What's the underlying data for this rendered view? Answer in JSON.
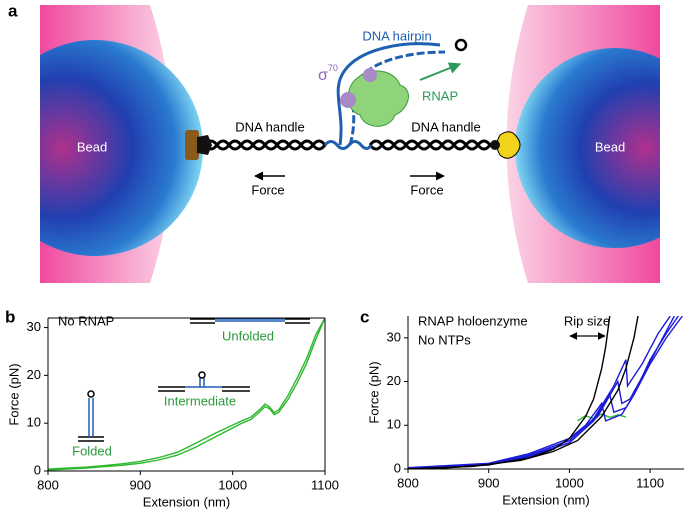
{
  "panel_labels": [
    "a",
    "b",
    "c"
  ],
  "diagram": {
    "hairpin": "DNA hairpin",
    "sigma": {
      "symbol": "σ",
      "superscript": "70"
    },
    "rnap": "RNAP",
    "handle_left": "DNA handle",
    "handle_right": "DNA handle",
    "force_left": "Force",
    "force_right": "Force",
    "bead_left": "Bead",
    "bead_right": "Bead"
  },
  "chart_data": [
    {
      "type": "line",
      "xlabel": "Extension (nm)",
      "ylabel": "Force (pN)",
      "xlim": [
        800,
        1100
      ],
      "xticks": [
        800,
        900,
        1000,
        1100
      ],
      "ylim": [
        0,
        32
      ],
      "yticks": [
        0,
        10,
        20,
        30
      ],
      "annotations": [
        "No RNAP",
        "Unfolded",
        "Intermediate",
        "Folded"
      ],
      "series": [
        {
          "color": "#2db82d",
          "x": [
            800,
            820,
            840,
            860,
            880,
            900,
            920,
            940,
            960,
            980,
            1000,
            1010,
            1020,
            1030,
            1035,
            1040,
            1045,
            1050,
            1060,
            1070,
            1080,
            1090,
            1100
          ],
          "values": [
            0.2,
            0.4,
            0.6,
            0.9,
            1.2,
            1.6,
            2.3,
            3.3,
            5,
            7,
            9,
            10,
            10.8,
            12.5,
            13.5,
            13,
            11.8,
            12.3,
            15,
            18.5,
            22.5,
            27.5,
            32
          ]
        },
        {
          "color": "#2db82d",
          "x": [
            800,
            820,
            840,
            860,
            880,
            900,
            920,
            940,
            960,
            980,
            1000,
            1010,
            1020,
            1030,
            1035,
            1040,
            1045,
            1050,
            1060,
            1070,
            1080,
            1090,
            1100
          ],
          "values": [
            0.4,
            0.6,
            0.8,
            1.1,
            1.5,
            2,
            2.8,
            3.9,
            5.8,
            7.8,
            9.6,
            10.5,
            11.3,
            13,
            14,
            13.4,
            12.2,
            12.8,
            15.8,
            19.5,
            23.5,
            28.5,
            32
          ]
        }
      ]
    },
    {
      "type": "line",
      "xlabel": "Extension (nm)",
      "ylabel": "Force (pN)",
      "xlim": [
        800,
        1142
      ],
      "xticks": [
        800,
        900,
        1000,
        1100
      ],
      "ylim": [
        0,
        35
      ],
      "yticks": [
        0,
        10,
        20,
        30
      ],
      "annotations": [
        "RNAP holoenzyme",
        "No NTPs",
        "Rip size"
      ],
      "series": [
        {
          "color": "#2db82d",
          "x": [
            1010,
            1020,
            1030,
            1040,
            1050,
            1060,
            1070
          ],
          "values": [
            11,
            12.2,
            11.5,
            12.6,
            11.8,
            12.4,
            11.9
          ]
        },
        {
          "color": "#1a1adb",
          "x": [
            800,
            900,
            950,
            1000,
            1030,
            1050,
            1055,
            1070,
            1080,
            1100,
            1120,
            1140
          ],
          "values": [
            0,
            1,
            3,
            6,
            11,
            17,
            13,
            14,
            17,
            24,
            30,
            35
          ]
        },
        {
          "color": "#1a1adb",
          "x": [
            800,
            900,
            950,
            1000,
            1020,
            1040,
            1045,
            1065,
            1080,
            1100,
            1120,
            1135
          ],
          "values": [
            0.3,
            1.3,
            3.5,
            7,
            10,
            15,
            11,
            12.5,
            17,
            25,
            31,
            35
          ]
        },
        {
          "color": "#1a1adb",
          "x": [
            800,
            900,
            950,
            1000,
            1035,
            1060,
            1065,
            1075,
            1090,
            1110,
            1130
          ],
          "values": [
            0.1,
            0.9,
            2.8,
            6,
            12,
            20,
            15,
            16,
            21,
            28,
            35
          ]
        },
        {
          "color": "#1a1adb",
          "x": [
            800,
            900,
            950,
            1000,
            1030,
            1055,
            1070,
            1072,
            1090,
            1110,
            1125
          ],
          "values": [
            0.2,
            1.1,
            3.2,
            6.5,
            11.5,
            19,
            25,
            19,
            24,
            31,
            35
          ]
        },
        {
          "color": "#000000",
          "x": [
            800,
            850,
            900,
            950,
            980,
            1000,
            1020,
            1030,
            1040,
            1045,
            1050
          ],
          "values": [
            0,
            0.3,
            1,
            2.5,
            4.5,
            7,
            12,
            16,
            23,
            28,
            35
          ]
        },
        {
          "color": "#000000",
          "x": [
            800,
            880,
            940,
            980,
            1010,
            1040,
            1060,
            1070,
            1080,
            1085
          ],
          "values": [
            0,
            0.6,
            2,
            4,
            6.5,
            12,
            18,
            23,
            30,
            35
          ]
        }
      ]
    }
  ]
}
